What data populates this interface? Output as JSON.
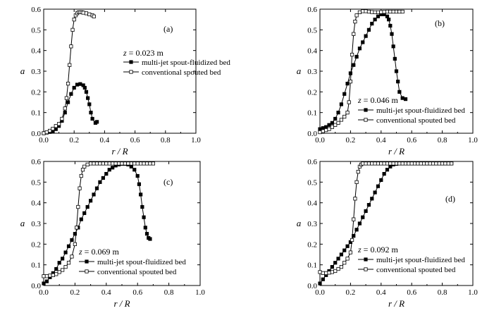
{
  "figure": {
    "xlabel": "r / R",
    "ylabel": "a"
  },
  "legend": {
    "series_a": "multi-jet spout-fluidized bed",
    "series_b": "conventional spouted bed"
  },
  "colors": {
    "stroke": "#000000",
    "open_fill": "#ffffff",
    "filled": "#000000"
  },
  "chart_data": [
    {
      "type": "line",
      "panel_label": "(a)",
      "annotation": {
        "var": "z",
        "value": " = 0.023 m"
      },
      "xlabel": "r / R",
      "ylabel": "a",
      "xlim": [
        0.0,
        1.0
      ],
      "ylim": [
        0.0,
        0.6
      ],
      "xticks": [
        "0.0",
        "0.2",
        "0.4",
        "0.6",
        "0.8",
        "1.0"
      ],
      "yticks": [
        "0.0",
        "0.1",
        "0.2",
        "0.3",
        "0.4",
        "0.5",
        "0.6"
      ],
      "grid": false,
      "legend_position": "right-middle",
      "series": [
        {
          "name": "multi-jet spout-fluidized bed",
          "marker": "filled-square",
          "x": [
            0.0,
            0.02,
            0.04,
            0.06,
            0.08,
            0.1,
            0.12,
            0.14,
            0.16,
            0.18,
            0.2,
            0.22,
            0.24,
            0.26,
            0.27,
            0.28,
            0.29,
            0.3,
            0.31,
            0.32,
            0.34,
            0.35
          ],
          "y": [
            0.0,
            0.003,
            0.006,
            0.01,
            0.02,
            0.035,
            0.06,
            0.1,
            0.15,
            0.19,
            0.22,
            0.235,
            0.238,
            0.232,
            0.22,
            0.2,
            0.17,
            0.14,
            0.1,
            0.07,
            0.05,
            0.055
          ]
        },
        {
          "name": "conventional spouted bed",
          "marker": "open-square",
          "x": [
            0.0,
            0.02,
            0.04,
            0.06,
            0.08,
            0.1,
            0.12,
            0.14,
            0.15,
            0.16,
            0.17,
            0.18,
            0.19,
            0.2,
            0.21,
            0.22,
            0.23,
            0.24,
            0.25,
            0.26,
            0.28,
            0.3,
            0.32,
            0.33
          ],
          "y": [
            0.0,
            0.005,
            0.012,
            0.022,
            0.035,
            0.045,
            0.07,
            0.12,
            0.17,
            0.24,
            0.33,
            0.42,
            0.5,
            0.55,
            0.57,
            0.58,
            0.585,
            0.585,
            0.585,
            0.583,
            0.58,
            0.575,
            0.57,
            0.565
          ]
        }
      ]
    },
    {
      "type": "line",
      "panel_label": "(b)",
      "annotation": {
        "var": "z",
        "value": " = 0.046 m"
      },
      "xlabel": "r / R",
      "ylabel": "a",
      "xlim": [
        0.0,
        1.0
      ],
      "ylim": [
        0.0,
        0.6
      ],
      "xticks": [
        "0.0",
        "0.2",
        "0.4",
        "0.6",
        "0.8",
        "1.0"
      ],
      "yticks": [
        "0.0",
        "0.1",
        "0.2",
        "0.3",
        "0.4",
        "0.5",
        "0.6"
      ],
      "grid": false,
      "legend_position": "lower-middle",
      "series": [
        {
          "name": "multi-jet spout-fluidized bed",
          "marker": "filled-square",
          "x": [
            0.0,
            0.02,
            0.04,
            0.06,
            0.08,
            0.1,
            0.12,
            0.14,
            0.16,
            0.18,
            0.2,
            0.22,
            0.24,
            0.26,
            0.28,
            0.3,
            0.32,
            0.34,
            0.36,
            0.38,
            0.4,
            0.42,
            0.44,
            0.45,
            0.46,
            0.47,
            0.48,
            0.49,
            0.5,
            0.51,
            0.52,
            0.54,
            0.56
          ],
          "y": [
            0.02,
            0.025,
            0.03,
            0.04,
            0.05,
            0.07,
            0.1,
            0.14,
            0.19,
            0.24,
            0.29,
            0.33,
            0.37,
            0.41,
            0.44,
            0.47,
            0.5,
            0.53,
            0.55,
            0.565,
            0.575,
            0.575,
            0.565,
            0.55,
            0.52,
            0.48,
            0.42,
            0.36,
            0.3,
            0.25,
            0.2,
            0.17,
            0.165
          ]
        },
        {
          "name": "conventional spouted bed",
          "marker": "open-square",
          "x": [
            0.0,
            0.02,
            0.04,
            0.06,
            0.08,
            0.1,
            0.12,
            0.14,
            0.16,
            0.18,
            0.19,
            0.2,
            0.21,
            0.22,
            0.23,
            0.24,
            0.26,
            0.28,
            0.3,
            0.32,
            0.34,
            0.36,
            0.38,
            0.4,
            0.42,
            0.44,
            0.46,
            0.48,
            0.5,
            0.52,
            0.54
          ],
          "y": [
            0.005,
            0.01,
            0.015,
            0.02,
            0.03,
            0.04,
            0.05,
            0.065,
            0.08,
            0.1,
            0.15,
            0.25,
            0.38,
            0.48,
            0.54,
            0.57,
            0.585,
            0.59,
            0.59,
            0.588,
            0.586,
            0.585,
            0.585,
            0.586,
            0.587,
            0.588,
            0.588,
            0.588,
            0.588,
            0.588,
            0.588
          ]
        }
      ]
    },
    {
      "type": "line",
      "panel_label": "(c)",
      "annotation": {
        "var": "z",
        "value": " = 0.069 m"
      },
      "xlabel": "r / R",
      "ylabel": "a",
      "xlim": [
        0.0,
        1.0
      ],
      "ylim": [
        0.0,
        0.6
      ],
      "xticks": [
        "0.0",
        "0.2",
        "0.4",
        "0.6",
        "0.8",
        "1.0"
      ],
      "yticks": [
        "0.0",
        "0.1",
        "0.2",
        "0.3",
        "0.4",
        "0.5",
        "0.6"
      ],
      "grid": false,
      "legend_position": "lower-middle",
      "series": [
        {
          "name": "multi-jet spout-fluidized bed",
          "marker": "filled-square",
          "x": [
            0.0,
            0.02,
            0.04,
            0.06,
            0.08,
            0.1,
            0.12,
            0.14,
            0.16,
            0.18,
            0.2,
            0.22,
            0.24,
            0.26,
            0.28,
            0.3,
            0.32,
            0.34,
            0.36,
            0.38,
            0.4,
            0.42,
            0.44,
            0.46,
            0.48,
            0.5,
            0.52,
            0.54,
            0.56,
            0.58,
            0.6,
            0.61,
            0.62,
            0.63,
            0.64,
            0.65,
            0.66,
            0.67,
            0.68
          ],
          "y": [
            0.01,
            0.02,
            0.04,
            0.06,
            0.08,
            0.11,
            0.13,
            0.16,
            0.19,
            0.22,
            0.25,
            0.28,
            0.32,
            0.35,
            0.38,
            0.41,
            0.44,
            0.47,
            0.5,
            0.52,
            0.54,
            0.56,
            0.57,
            0.58,
            0.585,
            0.588,
            0.588,
            0.585,
            0.575,
            0.56,
            0.53,
            0.49,
            0.44,
            0.38,
            0.33,
            0.28,
            0.25,
            0.23,
            0.225
          ]
        },
        {
          "name": "conventional spouted bed",
          "marker": "open-square",
          "x": [
            0.0,
            0.02,
            0.04,
            0.06,
            0.08,
            0.1,
            0.12,
            0.14,
            0.16,
            0.18,
            0.2,
            0.21,
            0.22,
            0.23,
            0.24,
            0.25,
            0.26,
            0.28,
            0.3,
            0.32,
            0.34,
            0.36,
            0.38,
            0.4,
            0.42,
            0.44,
            0.46,
            0.48,
            0.5,
            0.52,
            0.54,
            0.56,
            0.58,
            0.6,
            0.62,
            0.64,
            0.66,
            0.68,
            0.7
          ],
          "y": [
            0.045,
            0.045,
            0.048,
            0.05,
            0.055,
            0.065,
            0.075,
            0.09,
            0.11,
            0.14,
            0.2,
            0.28,
            0.38,
            0.47,
            0.53,
            0.56,
            0.575,
            0.585,
            0.59,
            0.59,
            0.59,
            0.59,
            0.59,
            0.59,
            0.59,
            0.59,
            0.59,
            0.59,
            0.59,
            0.59,
            0.59,
            0.59,
            0.59,
            0.59,
            0.59,
            0.59,
            0.59,
            0.59,
            0.59
          ]
        }
      ]
    },
    {
      "type": "line",
      "panel_label": "(d)",
      "annotation": {
        "var": "z",
        "value": " = 0.092 m"
      },
      "xlabel": "r / R",
      "ylabel": "a",
      "xlim": [
        0.0,
        1.0
      ],
      "ylim": [
        0.0,
        0.6
      ],
      "xticks": [
        "0.0",
        "0.2",
        "0.4",
        "0.6",
        "0.8",
        "1.0"
      ],
      "yticks": [
        "0.0",
        "0.1",
        "0.2",
        "0.3",
        "0.4",
        "0.5",
        "0.6"
      ],
      "grid": false,
      "legend_position": "lower-middle",
      "series": [
        {
          "name": "multi-jet spout-fluidized bed",
          "marker": "filled-square",
          "x": [
            0.0,
            0.02,
            0.04,
            0.06,
            0.08,
            0.1,
            0.12,
            0.14,
            0.16,
            0.18,
            0.2,
            0.22,
            0.24,
            0.26,
            0.28,
            0.3,
            0.32,
            0.34,
            0.36,
            0.38,
            0.4,
            0.42,
            0.44,
            0.46,
            0.48,
            0.5,
            0.52,
            0.54,
            0.56,
            0.58,
            0.6,
            0.62,
            0.64,
            0.66,
            0.68,
            0.7,
            0.72,
            0.74,
            0.76,
            0.78,
            0.8,
            0.82,
            0.84,
            0.86
          ],
          "y": [
            0.01,
            0.03,
            0.05,
            0.07,
            0.09,
            0.11,
            0.13,
            0.15,
            0.17,
            0.19,
            0.21,
            0.24,
            0.27,
            0.3,
            0.33,
            0.36,
            0.39,
            0.42,
            0.45,
            0.48,
            0.51,
            0.54,
            0.56,
            0.575,
            0.585,
            0.588,
            0.59,
            0.59,
            0.59,
            0.59,
            0.59,
            0.59,
            0.59,
            0.59,
            0.59,
            0.59,
            0.59,
            0.59,
            0.59,
            0.59,
            0.59,
            0.59,
            0.59,
            0.59
          ]
        },
        {
          "name": "conventional spouted bed",
          "marker": "open-square",
          "x": [
            0.0,
            0.02,
            0.04,
            0.06,
            0.08,
            0.1,
            0.12,
            0.14,
            0.16,
            0.18,
            0.2,
            0.21,
            0.22,
            0.23,
            0.24,
            0.25,
            0.26,
            0.27,
            0.28,
            0.3,
            0.32,
            0.34,
            0.36,
            0.38,
            0.4,
            0.42,
            0.44,
            0.46,
            0.48,
            0.5,
            0.52,
            0.54,
            0.56,
            0.58,
            0.6,
            0.62,
            0.64,
            0.66,
            0.68,
            0.7,
            0.72,
            0.74,
            0.76,
            0.78,
            0.8,
            0.82,
            0.84,
            0.86
          ],
          "y": [
            0.065,
            0.06,
            0.06,
            0.062,
            0.065,
            0.07,
            0.08,
            0.09,
            0.11,
            0.13,
            0.16,
            0.22,
            0.32,
            0.42,
            0.5,
            0.55,
            0.575,
            0.585,
            0.59,
            0.59,
            0.59,
            0.59,
            0.59,
            0.59,
            0.59,
            0.59,
            0.59,
            0.59,
            0.59,
            0.59,
            0.59,
            0.59,
            0.59,
            0.59,
            0.59,
            0.59,
            0.59,
            0.59,
            0.59,
            0.59,
            0.59,
            0.59,
            0.59,
            0.59,
            0.59,
            0.59,
            0.59,
            0.59
          ]
        }
      ]
    }
  ]
}
